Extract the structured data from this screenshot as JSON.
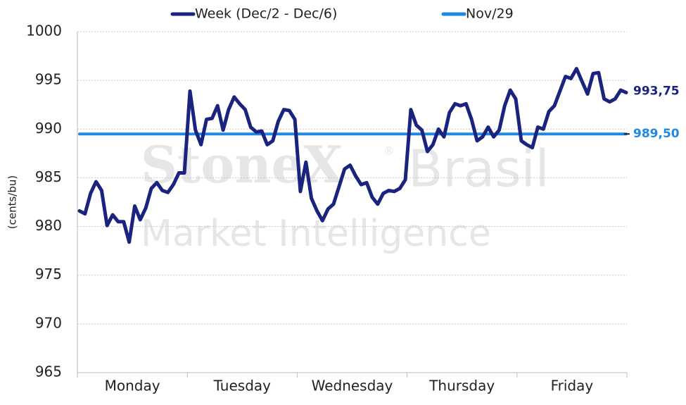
{
  "chart_data": {
    "type": "line",
    "y_label": "(cents/bu)",
    "watermark": {
      "brand": "StoneX",
      "mark": "®",
      "region": "Brasil",
      "tagline": "Market Intelligence"
    },
    "ylim": [
      965,
      1000
    ],
    "yticks": [
      965,
      970,
      975,
      980,
      985,
      990,
      995,
      1000
    ],
    "grid": true,
    "legend": "top",
    "categories": [
      null,
      null,
      null,
      null,
      null,
      null,
      null,
      null,
      null,
      null,
      "Monday",
      null,
      null,
      null,
      null,
      null,
      null,
      null,
      null,
      null,
      null,
      null,
      null,
      null,
      null,
      null,
      null,
      null,
      null,
      null,
      "Tuesday",
      null,
      null,
      null,
      null,
      null,
      null,
      null,
      null,
      null,
      null,
      null,
      null,
      null,
      null,
      null,
      null,
      null,
      null,
      null,
      "Wednesday",
      null,
      null,
      null,
      null,
      null,
      null,
      null,
      null,
      null,
      null,
      null,
      null,
      null,
      null,
      null,
      null,
      null,
      null,
      null,
      "Thursday",
      null,
      null,
      null,
      null,
      null,
      null,
      null,
      null,
      null,
      null,
      null,
      null,
      null,
      null,
      null,
      null,
      null,
      null,
      null,
      "Friday",
      null,
      null,
      null,
      null,
      null,
      null,
      null,
      null,
      null
    ],
    "series": [
      {
        "name": "Week (Dec/2 - Dec/6)",
        "color": "#1a237e",
        "end_label": "993,75",
        "values": [
          981.6,
          981.3,
          983.4,
          984.6,
          983.7,
          980.1,
          981.2,
          980.5,
          980.5,
          978.4,
          982.1,
          980.7,
          981.9,
          983.9,
          984.5,
          983.7,
          983.5,
          984.3,
          985.5,
          985.5,
          993.9,
          989.9,
          988.4,
          991,
          991.1,
          992.4,
          989.9,
          992,
          993.3,
          992.6,
          992,
          990.2,
          989.7,
          989.8,
          988.4,
          988.8,
          990.8,
          992,
          991.9,
          991,
          983.6,
          986.6,
          982.9,
          981.6,
          980.6,
          981.8,
          982.3,
          984.1,
          985.9,
          986.3,
          985.2,
          984.3,
          984.5,
          983,
          982.3,
          983.4,
          983.7,
          983.6,
          983.9,
          984.8,
          992,
          990.4,
          989.9,
          987.7,
          988.4,
          990,
          989.2,
          991.7,
          992.6,
          992.4,
          992.6,
          991,
          988.8,
          989.2,
          990.2,
          989.2,
          989.9,
          992.4,
          994,
          993.1,
          988.8,
          988.4,
          988.1,
          990.2,
          990,
          991.8,
          992.4,
          993.9,
          995.4,
          995.2,
          996.2,
          994.9,
          993.6,
          995.7,
          995.8,
          993.1,
          992.8,
          993.1,
          994,
          993.75
        ]
      },
      {
        "name": "Nov/29",
        "color": "#1e88e5",
        "end_label": "989,50",
        "values": [
          989.5,
          989.5,
          989.5,
          989.5,
          989.5,
          989.5,
          989.5,
          989.5,
          989.5,
          989.5,
          989.5,
          989.5,
          989.5,
          989.5,
          989.5,
          989.5,
          989.5,
          989.5,
          989.5,
          989.5,
          989.5,
          989.5,
          989.5,
          989.5,
          989.5,
          989.5,
          989.5,
          989.5,
          989.5,
          989.5,
          989.5,
          989.5,
          989.5,
          989.5,
          989.5,
          989.5,
          989.5,
          989.5,
          989.5,
          989.5,
          989.5,
          989.5,
          989.5,
          989.5,
          989.5,
          989.5,
          989.5,
          989.5,
          989.5,
          989.5,
          989.5,
          989.5,
          989.5,
          989.5,
          989.5,
          989.5,
          989.5,
          989.5,
          989.5,
          989.5,
          989.5,
          989.5,
          989.5,
          989.5,
          989.5,
          989.5,
          989.5,
          989.5,
          989.5,
          989.5,
          989.5,
          989.5,
          989.5,
          989.5,
          989.5,
          989.5,
          989.5,
          989.5,
          989.5,
          989.5,
          989.5,
          989.5,
          989.5,
          989.5,
          989.5,
          989.5,
          989.5,
          989.5,
          989.5,
          989.5,
          989.5,
          989.5,
          989.5,
          989.5,
          989.5,
          989.5,
          989.5,
          989.5,
          989.5,
          989.5
        ]
      }
    ]
  }
}
